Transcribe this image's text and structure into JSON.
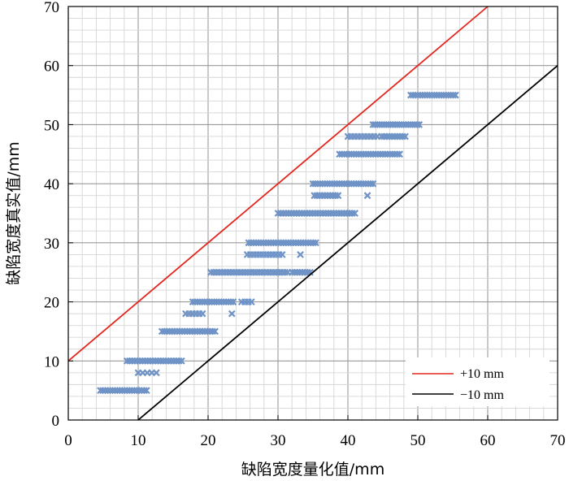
{
  "chart_data": {
    "type": "scatter",
    "xlabel": "缺陷宽度量化值/mm",
    "ylabel": "缺陷宽度真实值/mm",
    "xlim": [
      0,
      70
    ],
    "ylim": [
      0,
      70
    ],
    "xticks": [
      "0",
      "10",
      "20",
      "30",
      "40",
      "50",
      "60",
      "70"
    ],
    "yticks": [
      "0",
      "10",
      "20",
      "30",
      "40",
      "50",
      "60",
      "70"
    ],
    "grid": true,
    "legend_position": "bottom-right",
    "marker_color": "#6f93c6",
    "lines": [
      {
        "name": "+10 mm",
        "color": "#e3261e",
        "x": [
          0,
          60
        ],
        "y": [
          10,
          70
        ]
      },
      {
        "name": "−10 mm",
        "color": "#000000",
        "x": [
          10,
          70
        ],
        "y": [
          0,
          60
        ]
      }
    ],
    "clusters": [
      {
        "y": 5,
        "x_range": [
          4.6,
          11.2
        ],
        "count": 20
      },
      {
        "y": 10,
        "x_range": [
          8.4,
          16.2
        ],
        "count": 22
      },
      {
        "y": 8,
        "x_range": [
          10.0,
          12.6
        ],
        "count": 5
      },
      {
        "y": 15,
        "x_range": [
          13.4,
          21.0
        ],
        "count": 22
      },
      {
        "y": 18,
        "x_range": [
          16.8,
          19.2
        ],
        "count": 6
      },
      {
        "y": 18,
        "x_range": [
          23.4,
          23.6
        ],
        "count": 1
      },
      {
        "y": 20,
        "x_range": [
          17.8,
          23.6
        ],
        "count": 18
      },
      {
        "y": 20,
        "x_range": [
          24.8,
          26.2
        ],
        "count": 4
      },
      {
        "y": 25,
        "x_range": [
          20.4,
          31.4
        ],
        "count": 28
      },
      {
        "y": 25,
        "x_range": [
          32.0,
          34.6
        ],
        "count": 8
      },
      {
        "y": 28,
        "x_range": [
          25.6,
          30.6
        ],
        "count": 12
      },
      {
        "y": 28,
        "x_range": [
          33.2,
          33.4
        ],
        "count": 1
      },
      {
        "y": 30,
        "x_range": [
          25.8,
          35.4
        ],
        "count": 28
      },
      {
        "y": 35,
        "x_range": [
          30.0,
          41.0
        ],
        "count": 30
      },
      {
        "y": 38,
        "x_range": [
          35.2,
          38.6
        ],
        "count": 10
      },
      {
        "y": 38,
        "x_range": [
          42.8,
          43.0
        ],
        "count": 1
      },
      {
        "y": 40,
        "x_range": [
          35.0,
          43.6
        ],
        "count": 26
      },
      {
        "y": 45,
        "x_range": [
          38.8,
          47.4
        ],
        "count": 26
      },
      {
        "y": 48,
        "x_range": [
          40.0,
          44.2
        ],
        "count": 10
      },
      {
        "y": 48,
        "x_range": [
          44.8,
          48.2
        ],
        "count": 10
      },
      {
        "y": 50,
        "x_range": [
          43.6,
          50.2
        ],
        "count": 22
      },
      {
        "y": 55,
        "x_range": [
          49.0,
          55.4
        ],
        "count": 20
      }
    ]
  },
  "legend": {
    "upper_label": "+10 mm",
    "lower_label": "−10 mm"
  }
}
